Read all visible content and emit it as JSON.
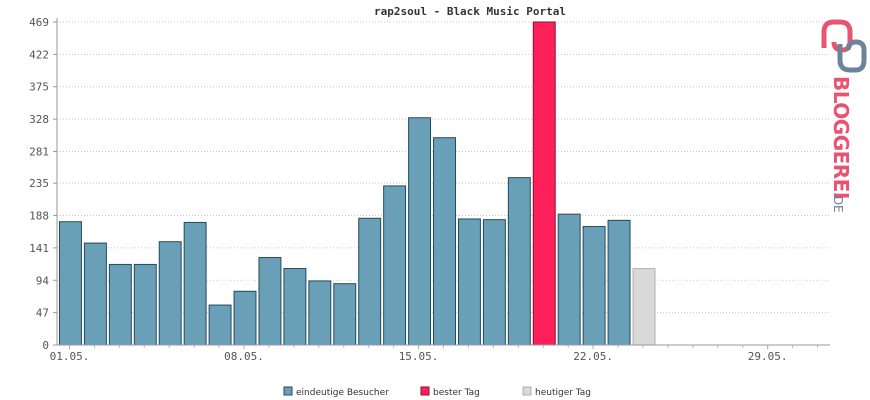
{
  "chart_data": {
    "type": "bar",
    "title": "rap2soul - Black Music Portal",
    "xlabel": "",
    "ylabel": "",
    "ylim": [
      0,
      469
    ],
    "y_ticks": [
      "0",
      "47",
      "94",
      "141",
      "188",
      "235",
      "281",
      "328",
      "375",
      "422",
      "469"
    ],
    "x_ticks": [
      {
        "label": "01.05.",
        "day": 1
      },
      {
        "label": "08.05.",
        "day": 8
      },
      {
        "label": "15.05.",
        "day": 15
      },
      {
        "label": "22.05.",
        "day": 22
      },
      {
        "label": "29.05.",
        "day": 29
      }
    ],
    "days_in_range": 31,
    "grid": true,
    "legend_position": "bottom",
    "series": [
      {
        "name": "eindeutige Besucher",
        "color": "#6a9fb8",
        "values": [
          179,
          148,
          117,
          117,
          150,
          178,
          58,
          78,
          127,
          111,
          93,
          89,
          184,
          231,
          330,
          301,
          183,
          182,
          243,
          469,
          190,
          172,
          181,
          111
        ]
      },
      {
        "name": "bester Tag",
        "color": "#ff1f5a"
      },
      {
        "name": "heutiger Tag",
        "color": "#d9d9d9"
      }
    ],
    "best_day_index": 19,
    "today_index": 23
  },
  "logo": {
    "text": "BLOGGEREI",
    "suffix": ".DE",
    "color_primary": "#e85470",
    "color_secondary": "#6c8399"
  }
}
